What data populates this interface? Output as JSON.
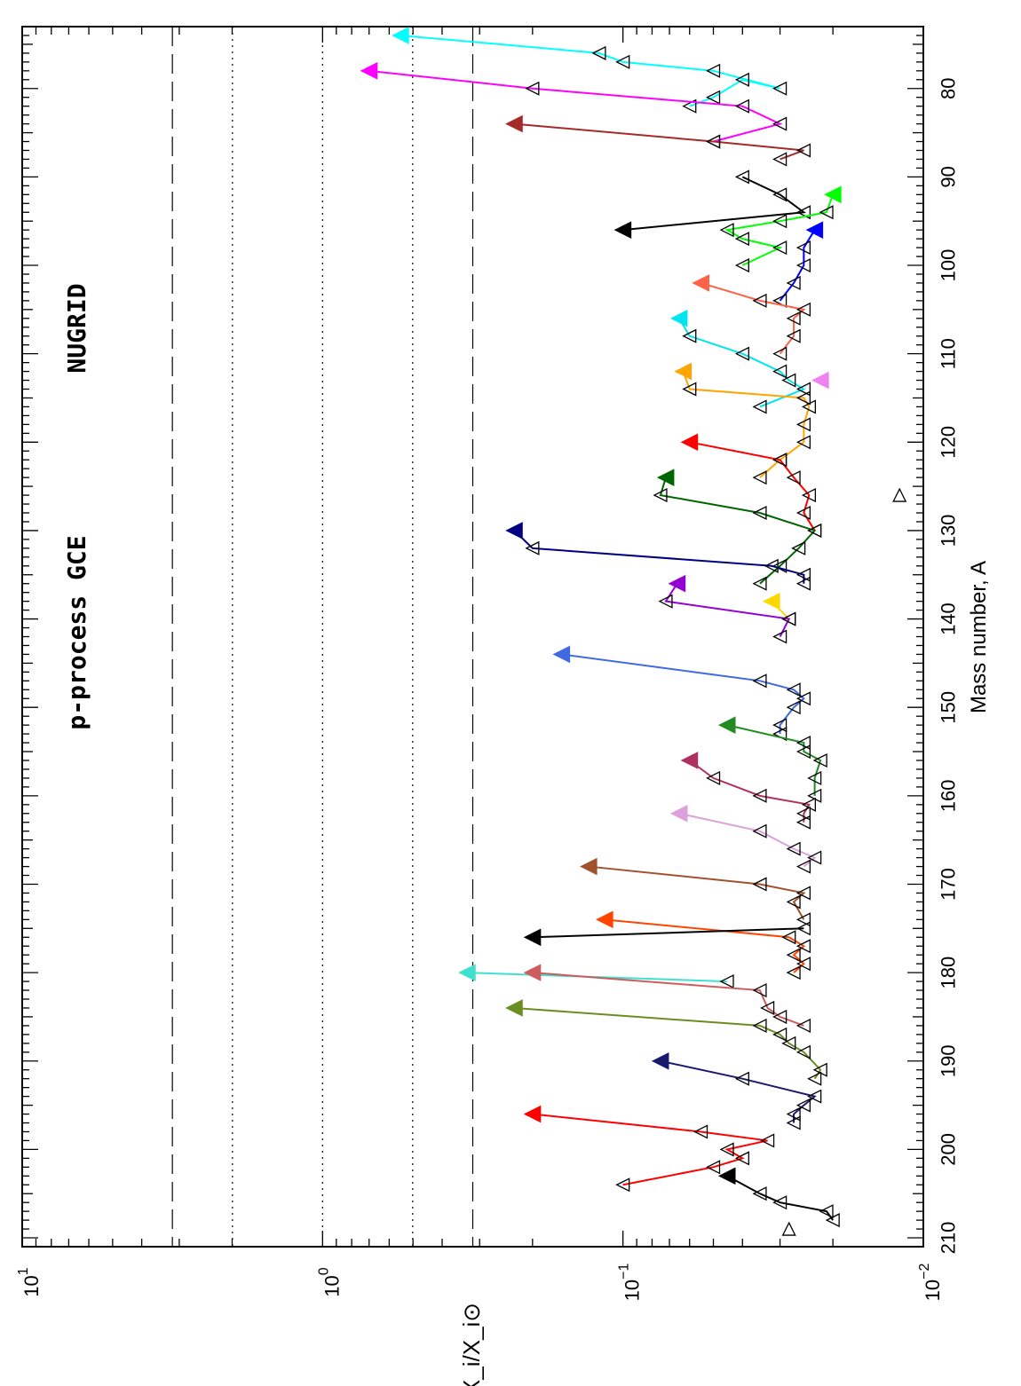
{
  "chart_data": {
    "type": "line",
    "title": "",
    "xlabel": "Mass number, A",
    "ylabel": "X_i/X_i⊙",
    "x_range": [
      73,
      211
    ],
    "y_range_log10": [
      -2,
      1
    ],
    "yscale": "log",
    "x_ticks": [
      "80",
      "90",
      "100",
      "110",
      "120",
      "130",
      "140",
      "150",
      "160",
      "170",
      "180",
      "190",
      "200",
      "210"
    ],
    "y_ticks": [
      {
        "base": "10",
        "exp": "1",
        "value": 1
      },
      {
        "base": "10",
        "exp": "0",
        "value": 0
      },
      {
        "base": "10",
        "exp": "−1",
        "value": -1
      },
      {
        "base": "10",
        "exp": "−2",
        "value": -2
      }
    ],
    "reference_lines": [
      {
        "value_log10": 0.5,
        "style": "dashed"
      },
      {
        "value_log10": 0.3,
        "style": "dotted"
      },
      {
        "value_log10": 0.0,
        "style": "dotted"
      },
      {
        "value_log10": -0.3,
        "style": "dotted"
      },
      {
        "value_log10": -0.5,
        "style": "dashed"
      }
    ],
    "annotations": [
      {
        "text": "NUGRID"
      },
      {
        "text": "p-process GCE"
      }
    ],
    "series": [
      {
        "color": "#00ffff",
        "x": [
          74,
          76,
          77,
          78,
          80,
          79,
          81,
          82
        ],
        "y": [
          0.55,
          0.12,
          0.1,
          0.05,
          0.03,
          0.04,
          0.05,
          0.06
        ]
      },
      {
        "color": "#ff00ff",
        "x": [
          78,
          80,
          82,
          84,
          86
        ],
        "y": [
          0.7,
          0.2,
          0.04,
          0.03,
          0.05
        ]
      },
      {
        "color": "#a52a2a",
        "x": [
          84,
          86,
          87,
          88
        ],
        "y": [
          0.23,
          0.05,
          0.025,
          0.03
        ]
      },
      {
        "color": "#000000",
        "x": [
          96,
          94,
          92,
          90
        ],
        "y": [
          0.1,
          0.025,
          0.03,
          0.04
        ]
      },
      {
        "color": "#00ff00",
        "x": [
          92,
          94,
          95,
          96,
          97,
          98,
          100
        ],
        "y": [
          0.02,
          0.021,
          0.03,
          0.045,
          0.04,
          0.03,
          0.04
        ]
      },
      {
        "color": "#0000ff",
        "x": [
          96,
          98,
          100,
          102,
          104
        ],
        "y": [
          0.023,
          0.025,
          0.025,
          0.027,
          0.03
        ]
      },
      {
        "color": "#ff6347",
        "x": [
          102,
          104,
          105,
          106,
          108,
          110
        ],
        "y": [
          0.055,
          0.035,
          0.025,
          0.027,
          0.027,
          0.03
        ]
      },
      {
        "color": "#00e5ee",
        "x": [
          106,
          108,
          110,
          112,
          113,
          114,
          116
        ],
        "y": [
          0.065,
          0.06,
          0.04,
          0.03,
          0.028,
          0.025,
          0.035
        ]
      },
      {
        "color": "#ffa500",
        "x": [
          112,
          114,
          115,
          116,
          118,
          120,
          122,
          124
        ],
        "y": [
          0.063,
          0.06,
          0.025,
          0.024,
          0.025,
          0.025,
          0.03,
          0.035
        ]
      },
      {
        "color": "#ee82ee",
        "x": [
          113
        ],
        "y": [
          0.022
        ]
      },
      {
        "color": "#ff0000",
        "x": [
          120,
          122,
          124,
          126,
          128,
          130
        ],
        "y": [
          0.06,
          0.03,
          0.027,
          0.024,
          0.025,
          0.023
        ]
      },
      {
        "color": "#006400",
        "x": [
          124,
          126,
          128,
          130,
          132,
          134,
          136
        ],
        "y": [
          0.072,
          0.075,
          0.035,
          0.023,
          0.026,
          0.03,
          0.035
        ]
      },
      {
        "color": "#000080",
        "x": [
          130,
          132,
          134,
          135,
          136
        ],
        "y": [
          0.23,
          0.2,
          0.032,
          0.025,
          0.025
        ]
      },
      {
        "color": "#ffd700",
        "x": [
          138,
          140
        ],
        "y": [
          0.032,
          0.028
        ]
      },
      {
        "color": "#9400d3",
        "x": [
          136,
          138,
          140,
          142
        ],
        "y": [
          0.066,
          0.072,
          0.028,
          0.03
        ]
      },
      {
        "color": "#4169e1",
        "x": [
          144,
          147,
          148,
          149,
          150,
          152,
          153
        ],
        "y": [
          0.16,
          0.035,
          0.027,
          0.025,
          0.027,
          0.03,
          0.03
        ]
      },
      {
        "color": "#228b22",
        "x": [
          152,
          154,
          155,
          156,
          158,
          160
        ],
        "y": [
          0.045,
          0.025,
          0.025,
          0.022,
          0.023,
          0.023
        ]
      },
      {
        "color": "#b03060",
        "x": [
          156,
          158,
          160,
          161,
          162,
          163
        ],
        "y": [
          0.06,
          0.05,
          0.035,
          0.024,
          0.025,
          0.025
        ]
      },
      {
        "color": "#dda0dd",
        "x": [
          162,
          164,
          166,
          167,
          168
        ],
        "y": [
          0.065,
          0.035,
          0.027,
          0.023,
          0.025
        ]
      },
      {
        "color": "#a0522d",
        "x": [
          168,
          170,
          171,
          172,
          174
        ],
        "y": [
          0.13,
          0.035,
          0.025,
          0.027,
          0.025
        ]
      },
      {
        "color": "#ff4500",
        "x": [
          174,
          176,
          177,
          178,
          179,
          180
        ],
        "y": [
          0.115,
          0.028,
          0.025,
          0.027,
          0.025,
          0.027
        ]
      },
      {
        "color": "#000000",
        "x": [
          176,
          175
        ],
        "y": [
          0.2,
          0.025
        ]
      },
      {
        "color": "#40e0d0",
        "x": [
          180,
          181
        ],
        "y": [
          0.33,
          0.045
        ]
      },
      {
        "color": "#cd5c5c",
        "x": [
          180,
          182,
          184,
          185,
          186
        ],
        "y": [
          0.2,
          0.035,
          0.033,
          0.03,
          0.025
        ]
      },
      {
        "color": "#6b8e23",
        "x": [
          184,
          186,
          187,
          188,
          189,
          191,
          192
        ],
        "y": [
          0.23,
          0.035,
          0.03,
          0.028,
          0.025,
          0.022,
          0.023
        ]
      },
      {
        "color": "#191970",
        "x": [
          190,
          192,
          194,
          195,
          196,
          197
        ],
        "y": [
          0.075,
          0.04,
          0.023,
          0.025,
          0.027,
          0.027
        ]
      },
      {
        "color": "#ff0000",
        "x": [
          196,
          198,
          199,
          200,
          201,
          202,
          204
        ],
        "y": [
          0.2,
          0.055,
          0.033,
          0.045,
          0.04,
          0.05,
          0.1
        ]
      },
      {
        "color": "#000000",
        "x": [
          203,
          205,
          206,
          207,
          208
        ],
        "y": [
          0.045,
          0.035,
          0.03,
          0.021,
          0.02
        ]
      }
    ],
    "markers": [
      {
        "x": 126,
        "y": 0.012
      },
      {
        "x": 209,
        "y": 0.028
      }
    ]
  }
}
